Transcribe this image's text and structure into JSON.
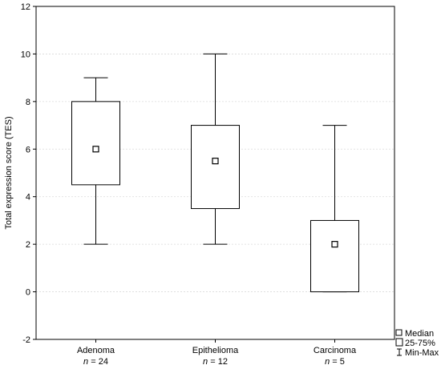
{
  "chart_data": {
    "type": "box",
    "ylabel": "Total expression score (TES)",
    "ylim": [
      -2,
      12
    ],
    "yticks": [
      -2,
      0,
      2,
      4,
      6,
      8,
      10,
      12
    ],
    "grid": "horizontal",
    "legend": {
      "placement": "bottom-right",
      "items": [
        {
          "label": "Median",
          "symbol": "square"
        },
        {
          "label": "25-75%",
          "symbol": "box"
        },
        {
          "label": "Min-Max",
          "symbol": "whisker"
        }
      ]
    },
    "groups": [
      {
        "category": "Adenoma",
        "n_label": "n = 24",
        "min": 2,
        "q1": 4.5,
        "median": 6,
        "q3": 8,
        "max": 9
      },
      {
        "category": "Epithelioma",
        "n_label": "n = 12",
        "min": 2,
        "q1": 3.5,
        "median": 5.5,
        "q3": 7,
        "max": 10
      },
      {
        "category": "Carcinoma",
        "n_label": "n = 5",
        "min": 0,
        "q1": 0,
        "median": 2,
        "q3": 3,
        "max": 7
      }
    ]
  }
}
